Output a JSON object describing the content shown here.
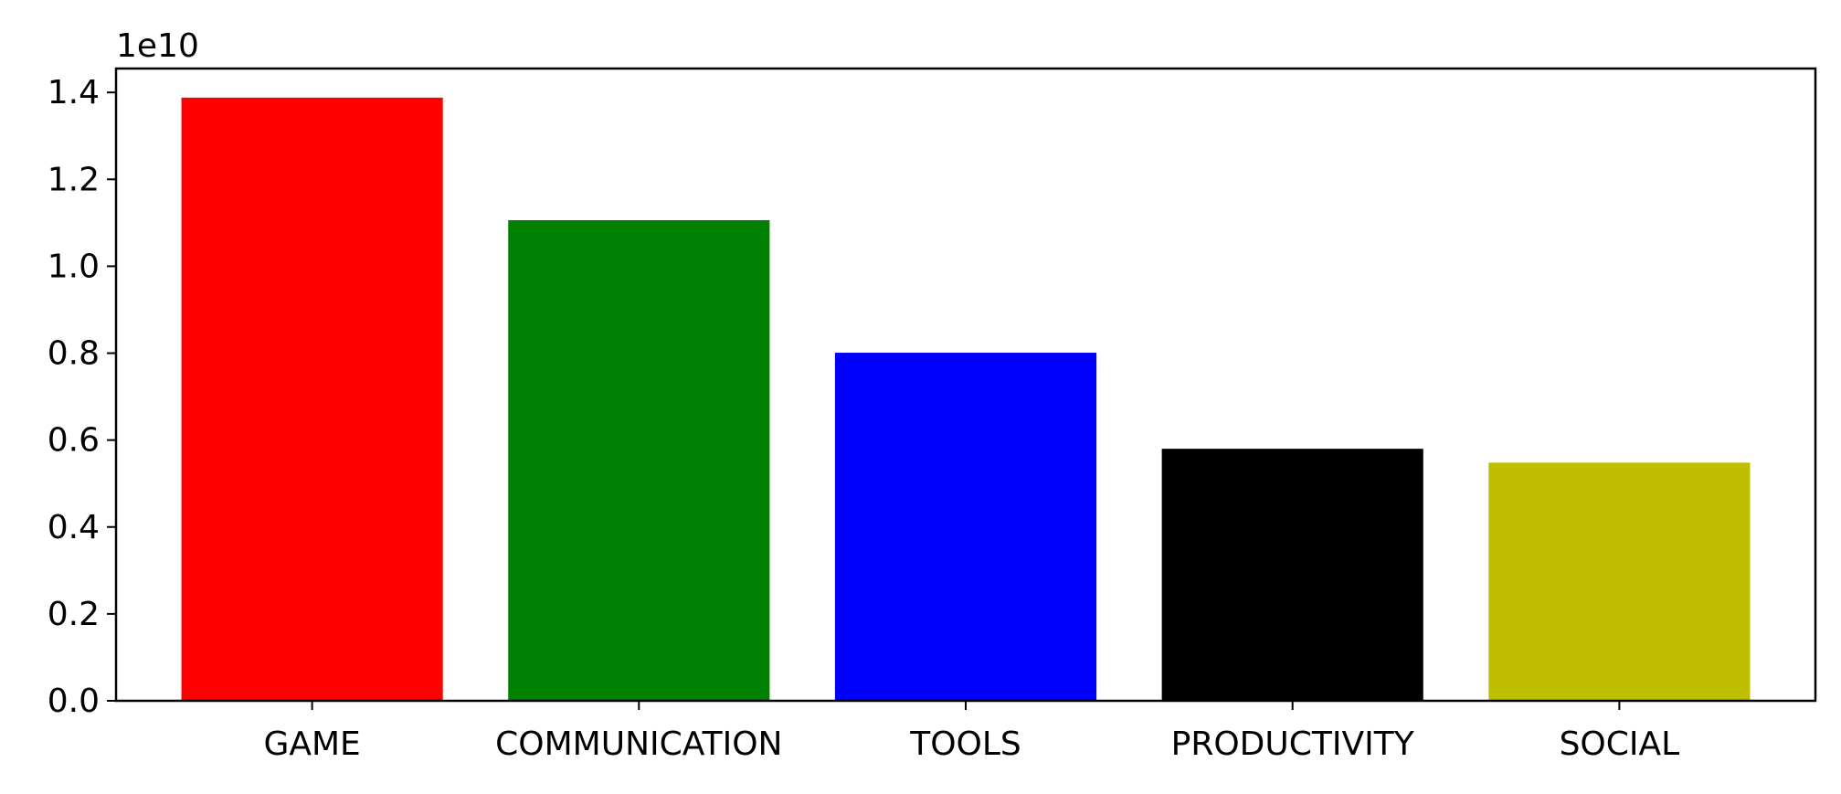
{
  "chart_data": {
    "type": "bar",
    "categories": [
      "GAME",
      "COMMUNICATION",
      "TOOLS",
      "PRODUCTIVITY",
      "SOCIAL"
    ],
    "values": [
      13880000000,
      11060000000,
      8010000000,
      5800000000,
      5480000000
    ],
    "colors": [
      "#ff0000",
      "#008000",
      "#0000ff",
      "#000000",
      "#bfbf00"
    ],
    "ylim": [
      0,
      14550000000
    ],
    "yticks": [
      0,
      2000000000,
      4000000000,
      6000000000,
      8000000000,
      10000000000,
      12000000000,
      14000000000
    ],
    "ytick_labels": [
      "0.0",
      "0.2",
      "0.4",
      "0.6",
      "0.8",
      "1.0",
      "1.2",
      "1.4"
    ],
    "y_offset_label": "1e10",
    "title": "",
    "xlabel": "",
    "ylabel": "",
    "grid": false
  }
}
